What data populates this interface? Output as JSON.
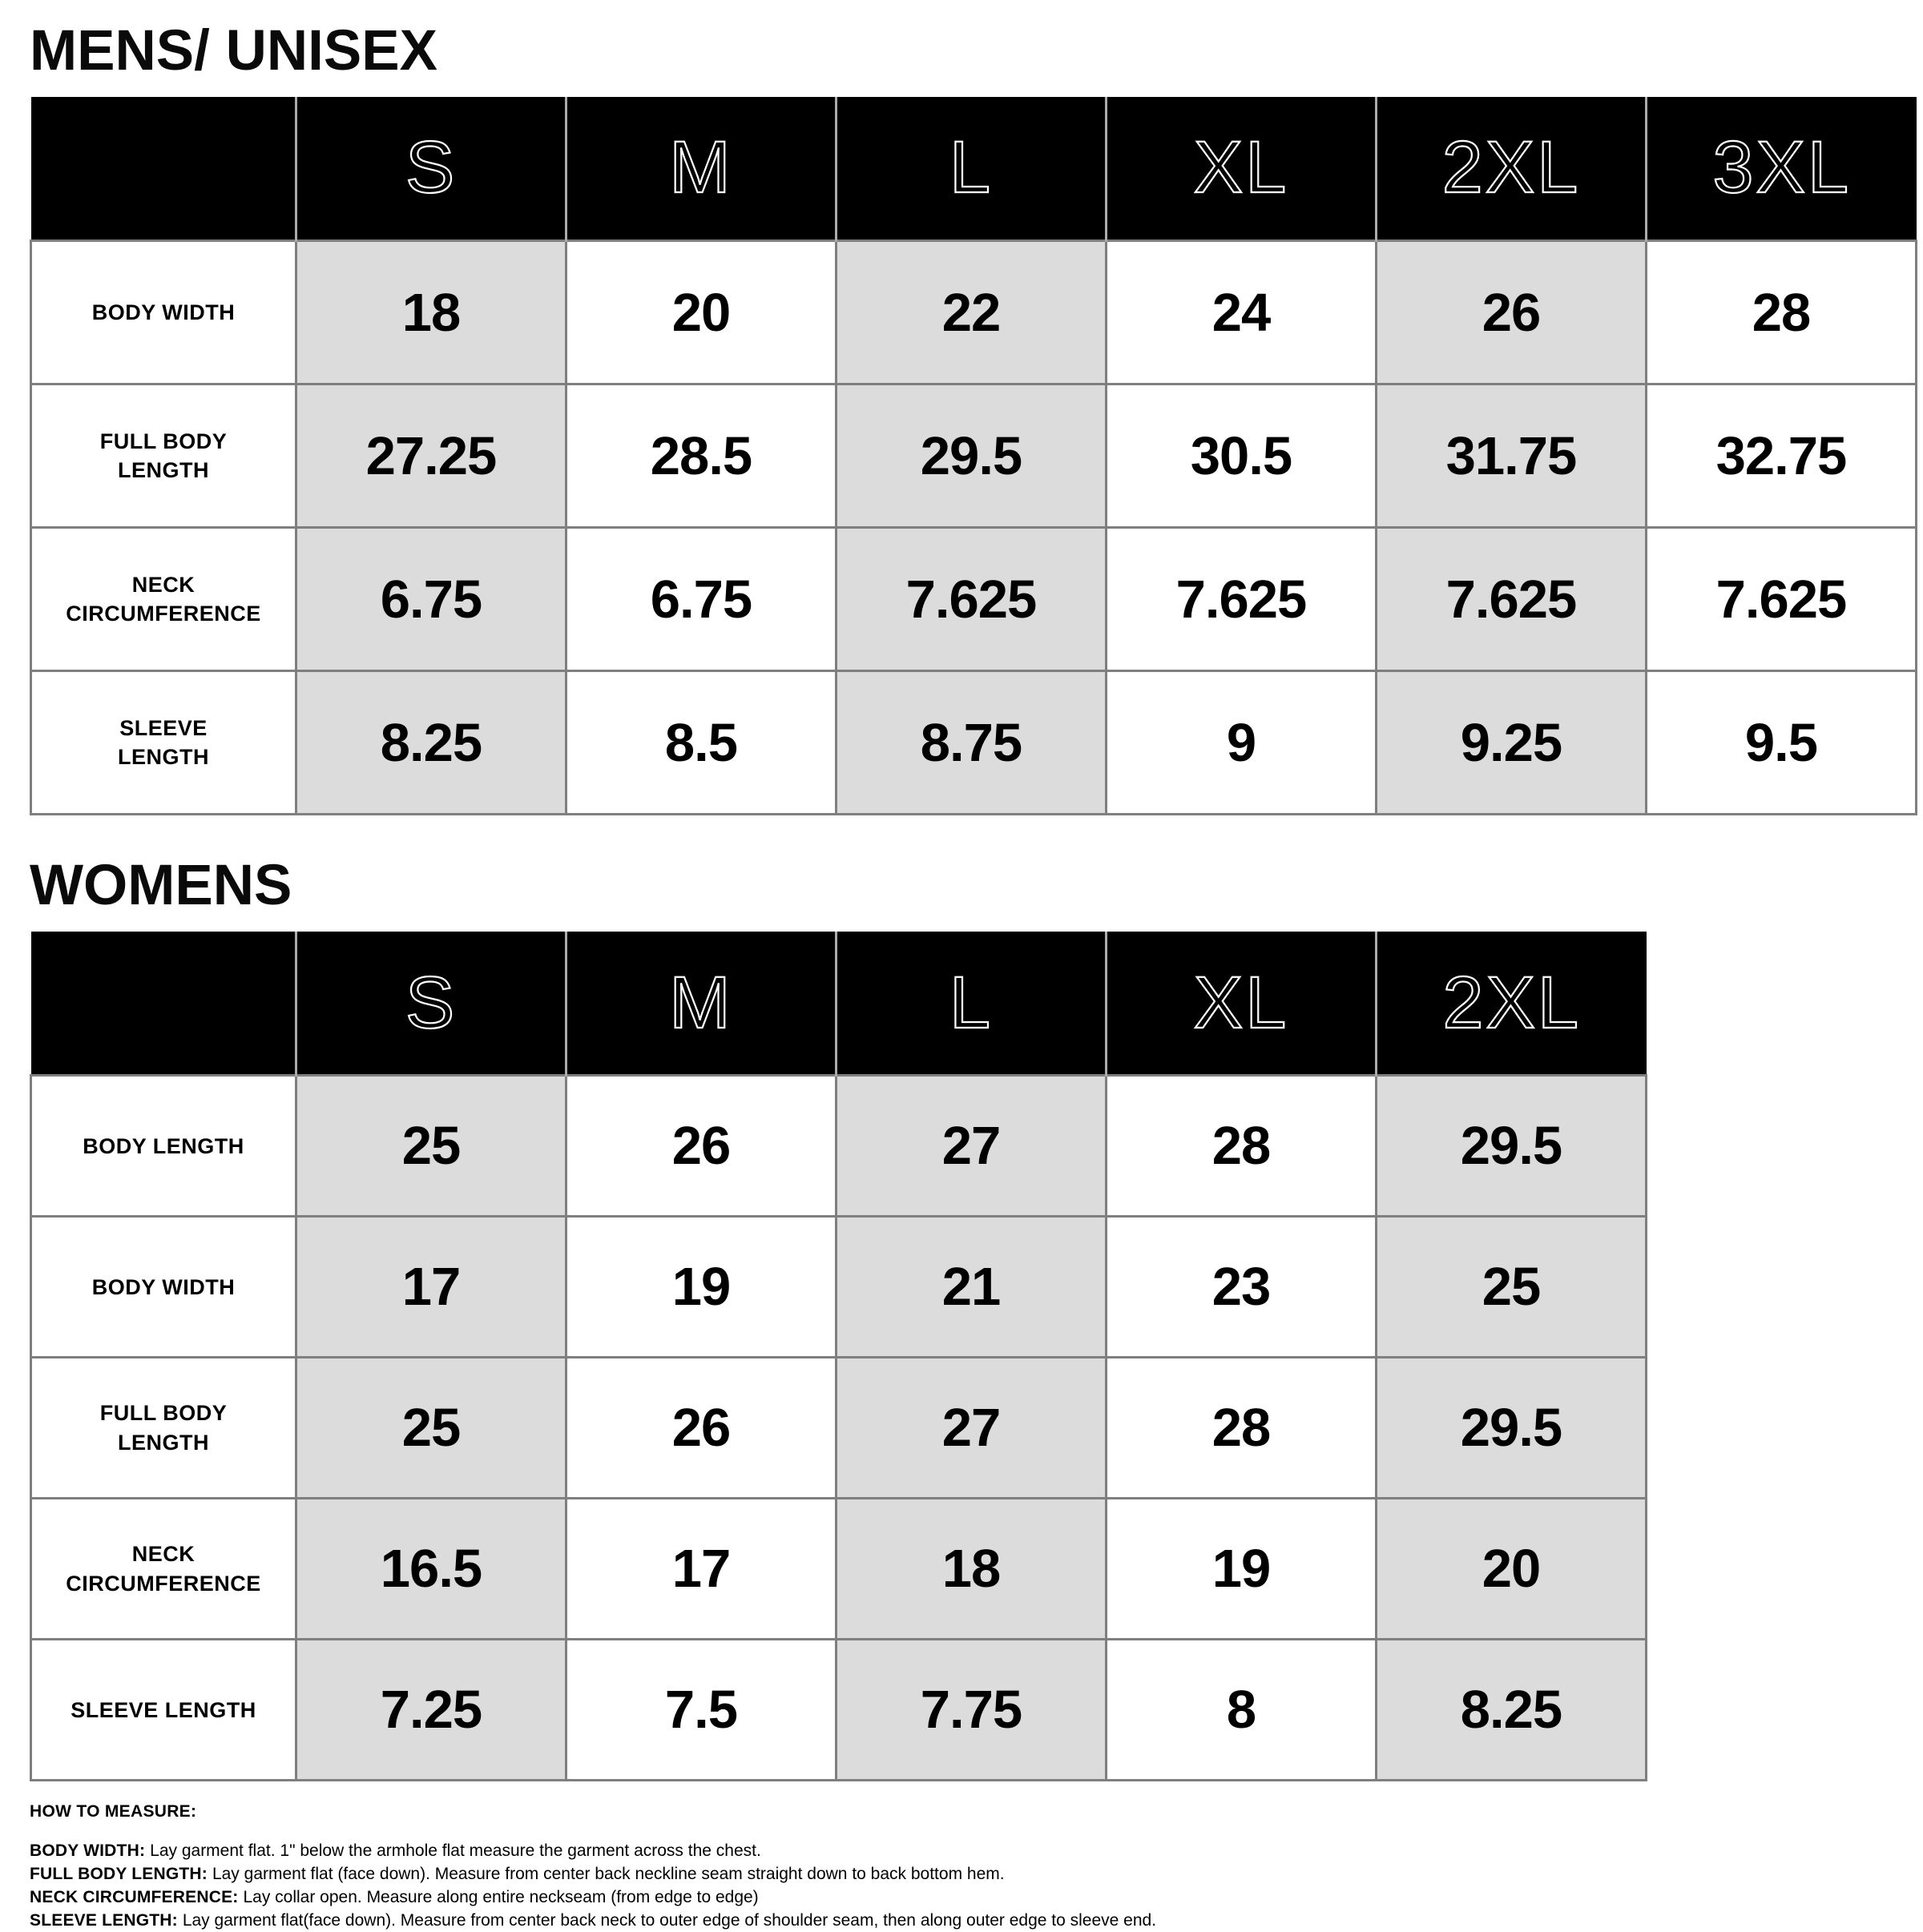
{
  "mens": {
    "title": "MENS/ UNISEX",
    "columns": [
      "S",
      "M",
      "L",
      "XL",
      "2XL",
      "3XL"
    ],
    "rows": [
      {
        "label": "BODY WIDTH",
        "values": [
          "18",
          "20",
          "22",
          "24",
          "26",
          "28"
        ]
      },
      {
        "label": "FULL BODY\nLENGTH",
        "values": [
          "27.25",
          "28.5",
          "29.5",
          "30.5",
          "31.75",
          "32.75"
        ]
      },
      {
        "label": "NECK\nCIRCUMFERENCE",
        "values": [
          "6.75",
          "6.75",
          "7.625",
          "7.625",
          "7.625",
          "7.625"
        ]
      },
      {
        "label": "SLEEVE\nLENGTH",
        "values": [
          "8.25",
          "8.5",
          "8.75",
          "9",
          "9.25",
          "9.5"
        ]
      }
    ]
  },
  "womens": {
    "title": "WOMENS",
    "columns": [
      "S",
      "M",
      "L",
      "XL",
      "2XL"
    ],
    "rows": [
      {
        "label": "BODY LENGTH",
        "values": [
          "25",
          "26",
          "27",
          "28",
          "29.5"
        ]
      },
      {
        "label": "BODY WIDTH",
        "values": [
          "17",
          "19",
          "21",
          "23",
          "25"
        ]
      },
      {
        "label": "FULL BODY\nLENGTH",
        "values": [
          "25",
          "26",
          "27",
          "28",
          "29.5"
        ]
      },
      {
        "label": "NECK\nCIRCUMFERENCE",
        "values": [
          "16.5",
          "17",
          "18",
          "19",
          "20"
        ]
      },
      {
        "label": "SLEEVE LENGTH",
        "values": [
          "7.25",
          "7.5",
          "7.75",
          "8",
          "8.25"
        ]
      }
    ]
  },
  "how_to_measure": {
    "heading": "HOW TO MEASURE:",
    "items": [
      {
        "label": "BODY WIDTH:",
        "text": "Lay garment flat. 1\" below the armhole flat measure the garment across the chest."
      },
      {
        "label": "FULL BODY LENGTH:",
        "text": "Lay garment flat (face down). Measure from center back neckline seam straight down to back bottom hem."
      },
      {
        "label": "NECK CIRCUMFERENCE:",
        "text": "Lay collar open. Measure along entire neckseam (from edge to edge)"
      },
      {
        "label": "SLEEVE LENGTH:",
        "text": "Lay garment flat(face down). Measure from center back neck to outer edge of shoulder seam, then along outer edge to sleeve end."
      }
    ]
  },
  "colors": {
    "header_bg": "#000000",
    "shaded_cell": "#dcdcdc",
    "grid_line": "#7f7f7f",
    "header_divider": "#ababab",
    "text": "#000000"
  }
}
